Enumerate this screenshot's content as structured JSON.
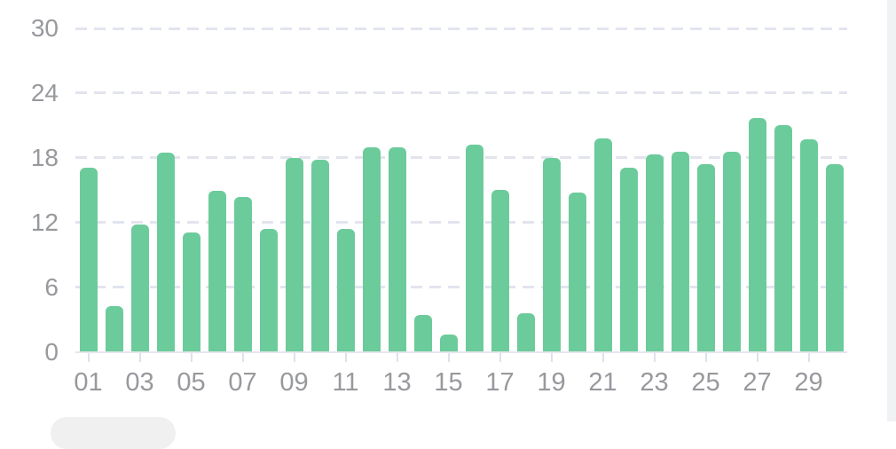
{
  "chart": {
    "bar_color": "#6CCB9B",
    "gridline_color": "#E2E4EE",
    "axis_color": "#E4E7ED",
    "tick_color": "#DDE2EC",
    "label_color": "#97999D",
    "right_panel_color": "#F1F2F4",
    "bottom_pill_color": "#F0F0F0"
  },
  "chart_data": {
    "type": "bar",
    "title": "",
    "xlabel": "",
    "ylabel": "",
    "categories": [
      "01",
      "02",
      "03",
      "04",
      "05",
      "06",
      "07",
      "08",
      "09",
      "10",
      "11",
      "12",
      "13",
      "14",
      "15",
      "16",
      "17",
      "18",
      "19",
      "20",
      "21",
      "22",
      "23",
      "24",
      "25",
      "26",
      "27",
      "28",
      "29",
      "30"
    ],
    "values": [
      17.1,
      4.2,
      11.8,
      18.5,
      11.1,
      14.9,
      14.4,
      11.4,
      18.0,
      17.8,
      11.4,
      19.0,
      19.0,
      3.4,
      1.6,
      19.2,
      15.0,
      3.6,
      18.0,
      14.8,
      19.8,
      17.1,
      18.3,
      18.6,
      17.4,
      18.6,
      21.7,
      21.0,
      19.7,
      17.4
    ],
    "xtick_labels": [
      "01",
      "03",
      "05",
      "07",
      "09",
      "11",
      "13",
      "15",
      "17",
      "19",
      "21",
      "23",
      "25",
      "27",
      "29"
    ],
    "yticks": [
      0,
      6,
      12,
      18,
      24,
      30
    ],
    "ylim": [
      0,
      30
    ],
    "grid": "horizontal-dashed",
    "legend": "none",
    "bar_color": "#6CCB9B"
  }
}
